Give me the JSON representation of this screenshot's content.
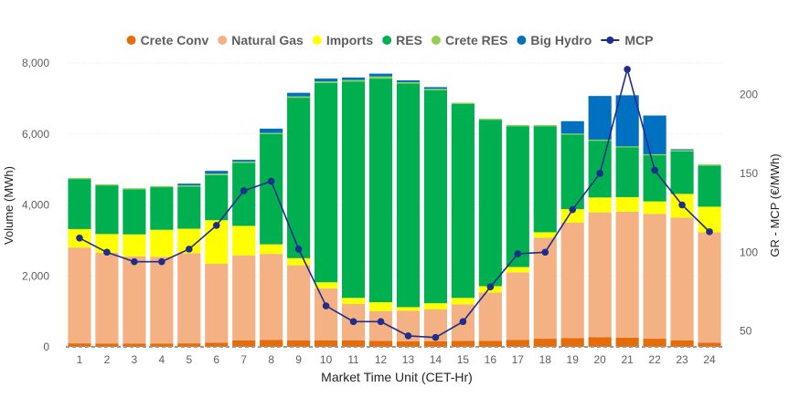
{
  "chart_data": {
    "type": "bar",
    "stacked": true,
    "title": "",
    "xlabel": "Market Time Unit (CET-Hr)",
    "ylabel": "Volume (MWh)",
    "y2label": "GR - MCP (€/MWh)",
    "ylim": [
      0,
      8000
    ],
    "y2lim": [
      40,
      220
    ],
    "yticks": [
      0,
      2000,
      4000,
      6000,
      8000
    ],
    "yticklabels": [
      "0",
      "2,000",
      "4,000",
      "6,000",
      "8,000"
    ],
    "y2ticks": [
      50,
      100,
      150,
      200
    ],
    "y2ticklabels": [
      "50",
      "100",
      "150",
      "200"
    ],
    "grid": true,
    "legend_position": "top-center",
    "categories": [
      "1",
      "2",
      "3",
      "4",
      "5",
      "6",
      "7",
      "8",
      "9",
      "10",
      "11",
      "12",
      "13",
      "14",
      "15",
      "16",
      "17",
      "18",
      "19",
      "20",
      "21",
      "22",
      "23",
      "24"
    ],
    "series": [
      {
        "name": "Crete Conv",
        "type": "bar",
        "color": "#E66C0A",
        "values": [
          100,
          90,
          90,
          90,
          100,
          120,
          180,
          200,
          180,
          180,
          180,
          170,
          160,
          160,
          170,
          170,
          200,
          230,
          250,
          270,
          260,
          230,
          180,
          120
        ]
      },
      {
        "name": "Natural Gas",
        "type": "bar",
        "color": "#F4B183",
        "values": [
          2700,
          2560,
          2460,
          2450,
          2540,
          2220,
          2400,
          2420,
          2120,
          1470,
          1030,
          840,
          860,
          900,
          1030,
          1360,
          1900,
          2850,
          3250,
          3520,
          3550,
          3520,
          3460,
          3110
        ]
      },
      {
        "name": "Imports",
        "type": "bar",
        "color": "#FFFF00",
        "values": [
          520,
          530,
          620,
          760,
          690,
          1230,
          830,
          270,
          200,
          170,
          170,
          250,
          100,
          170,
          180,
          180,
          150,
          150,
          380,
          420,
          410,
          350,
          670,
          720
        ]
      },
      {
        "name": "RES",
        "type": "bar",
        "color": "#00B050",
        "values": [
          1410,
          1370,
          1270,
          1200,
          1190,
          1270,
          1780,
          3110,
          4520,
          5620,
          6100,
          6300,
          6300,
          6000,
          5470,
          4690,
          3970,
          2990,
          2100,
          1600,
          1400,
          1300,
          1200,
          1160
        ]
      },
      {
        "name": "Crete RES",
        "type": "bar",
        "color": "#92D050",
        "values": [
          30,
          30,
          30,
          30,
          30,
          40,
          30,
          30,
          40,
          40,
          40,
          60,
          40,
          40,
          30,
          30,
          30,
          30,
          30,
          30,
          30,
          30,
          30,
          30
        ]
      },
      {
        "name": "Big Hydro",
        "type": "bar",
        "color": "#0070C0",
        "values": [
          0,
          0,
          0,
          0,
          50,
          80,
          50,
          120,
          100,
          80,
          70,
          80,
          50,
          50,
          0,
          0,
          0,
          0,
          350,
          1230,
          1440,
          1090,
          30,
          0
        ]
      },
      {
        "name": "MCP",
        "type": "line",
        "axis": "right",
        "color": "#1F2D8C",
        "values": [
          109,
          100,
          94,
          94,
          102,
          117,
          139,
          145,
          102,
          66,
          56,
          56,
          47,
          46,
          56,
          78,
          99,
          100,
          127,
          150,
          216,
          152,
          130,
          113
        ]
      }
    ]
  },
  "legend": {
    "items": [
      {
        "label": "Crete Conv",
        "color": "#E66C0A",
        "marker": "dot"
      },
      {
        "label": "Natural Gas",
        "color": "#F4B183",
        "marker": "dot"
      },
      {
        "label": "Imports",
        "color": "#FFFF00",
        "marker": "dot"
      },
      {
        "label": "RES",
        "color": "#00B050",
        "marker": "dot"
      },
      {
        "label": "Crete RES",
        "color": "#92D050",
        "marker": "dot"
      },
      {
        "label": "Big Hydro",
        "color": "#0070C0",
        "marker": "dot"
      },
      {
        "label": "MCP",
        "color": "#1F2D8C",
        "marker": "line-dot"
      }
    ]
  }
}
